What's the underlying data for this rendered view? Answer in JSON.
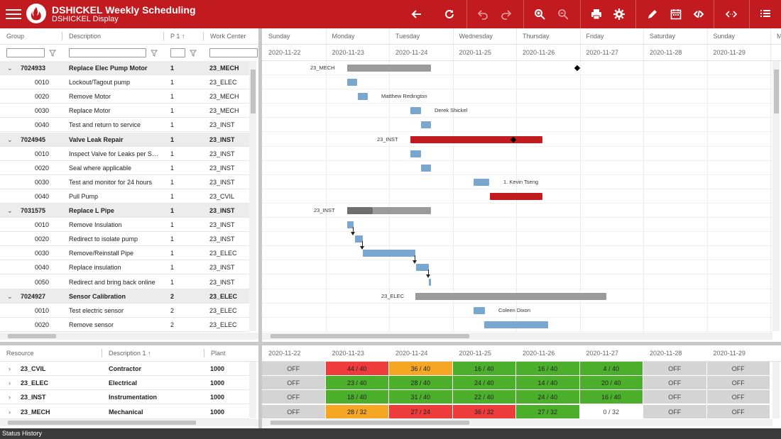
{
  "header": {
    "title": "DSHICKEL Weekly Scheduling",
    "subtitle": "DSHICKEL Display",
    "icons": [
      "menu-icon",
      "logo-icon",
      "back-icon",
      "refresh-icon",
      "undo-icon",
      "redo-icon",
      "zoom-in-icon",
      "zoom-out-icon",
      "print-icon",
      "settings-icon",
      "edit-icon",
      "calendar-icon",
      "link-icon",
      "expand-icon",
      "list-icon"
    ],
    "color": "#c11b20"
  },
  "orders_grid": {
    "columns": [
      "Group",
      "Description",
      "P 1",
      "Work Center"
    ],
    "rows": [
      {
        "group": "7024933",
        "description": "Replace Elec Pump Motor",
        "p": "1",
        "wc": "23_MECH",
        "type": "group"
      },
      {
        "group": "0010",
        "description": "Lockout/Tagout pump",
        "p": "1",
        "wc": "23_ELEC",
        "type": "op"
      },
      {
        "group": "0020",
        "description": "Remove Motor",
        "p": "1",
        "wc": "23_MECH",
        "type": "op"
      },
      {
        "group": "0030",
        "description": "Replace Motor",
        "p": "1",
        "wc": "23_MECH",
        "type": "op"
      },
      {
        "group": "0040",
        "description": "Test and return to service",
        "p": "1",
        "wc": "23_INST",
        "type": "op"
      },
      {
        "group": "7024945",
        "description": "Valve Leak Repair",
        "p": "1",
        "wc": "23_INST",
        "type": "group"
      },
      {
        "group": "0010",
        "description": "Inspect Valve for Leaks per SO...",
        "p": "1",
        "wc": "23_INST",
        "type": "op"
      },
      {
        "group": "0020",
        "description": "Seal where applicable",
        "p": "1",
        "wc": "23_INST",
        "type": "op"
      },
      {
        "group": "0030",
        "description": "Test and monitor for 24 hours",
        "p": "1",
        "wc": "23_INST",
        "type": "op"
      },
      {
        "group": "0040",
        "description": "Pull Pump",
        "p": "1",
        "wc": "23_CVIL",
        "type": "op"
      },
      {
        "group": "7031575",
        "description": "Replace L Pipe",
        "p": "1",
        "wc": "23_INST",
        "type": "group"
      },
      {
        "group": "0010",
        "description": "Remove Insulation",
        "p": "1",
        "wc": "23_INST",
        "type": "op"
      },
      {
        "group": "0020",
        "description": "Redirect to isolate pump",
        "p": "1",
        "wc": "23_INST",
        "type": "op"
      },
      {
        "group": "0030",
        "description": "Remove/Reinstall Pipe",
        "p": "1",
        "wc": "23_ELEC",
        "type": "op"
      },
      {
        "group": "0040",
        "description": "Replace insulation",
        "p": "1",
        "wc": "23_INST",
        "type": "op"
      },
      {
        "group": "0050",
        "description": "Redirect and bring back online",
        "p": "1",
        "wc": "23_INST",
        "type": "op"
      },
      {
        "group": "7024927",
        "description": "Sensor Calibration",
        "p": "2",
        "wc": "23_ELEC",
        "type": "group"
      },
      {
        "group": "0010",
        "description": "Test electric sensor",
        "p": "2",
        "wc": "23_ELEC",
        "type": "op"
      },
      {
        "group": "0020",
        "description": "Remove sensor",
        "p": "2",
        "wc": "23_ELEC",
        "type": "op"
      }
    ]
  },
  "gantt": {
    "days": [
      "Sunday",
      "Monday",
      "Tuesday",
      "Wednesday",
      "Thursday",
      "Friday",
      "Saturday",
      "Sunday",
      "M"
    ],
    "dates": [
      "2020-11-22",
      "2020-11-23",
      "2020-11-24",
      "2020-11-25",
      "2020-11-26",
      "2020-11-27",
      "2020-11-28",
      "2020-11-29"
    ],
    "labels": [
      "23_MECH",
      "Matthew Redington",
      "Derek Shickel",
      "23_INST",
      "1. Kevin Tseng",
      "23_INST",
      "23_ELEC",
      "Coleen Dixon"
    ]
  },
  "resources_grid": {
    "columns": [
      "Resource",
      "Description 1",
      "Plant"
    ],
    "rows": [
      {
        "resource": "23_CVIL",
        "description": "Contractor",
        "plant": "1000"
      },
      {
        "resource": "23_ELEC",
        "description": "Electrical",
        "plant": "1000"
      },
      {
        "resource": "23_INST",
        "description": "Instrumentation",
        "plant": "1000"
      },
      {
        "resource": "23_MECH",
        "description": "Mechanical",
        "plant": "1000"
      }
    ]
  },
  "capacity": {
    "dates": [
      "2020-11-22",
      "2020-11-23",
      "2020-11-24",
      "2020-11-25",
      "2020-11-26",
      "2020-11-27",
      "2020-11-28",
      "2020-11-29"
    ],
    "rows": [
      [
        {
          "v": "OFF",
          "s": "off"
        },
        {
          "v": "44 / 40",
          "s": "red"
        },
        {
          "v": "36 / 40",
          "s": "orange"
        },
        {
          "v": "16 / 40",
          "s": "green"
        },
        {
          "v": "16 / 40",
          "s": "green"
        },
        {
          "v": "4 / 40",
          "s": "green"
        },
        {
          "v": "OFF",
          "s": "off"
        },
        {
          "v": "OFF",
          "s": "off"
        }
      ],
      [
        {
          "v": "OFF",
          "s": "off"
        },
        {
          "v": "23 / 40",
          "s": "green"
        },
        {
          "v": "28 / 40",
          "s": "green"
        },
        {
          "v": "24 / 40",
          "s": "green"
        },
        {
          "v": "14 / 40",
          "s": "green"
        },
        {
          "v": "20 / 40",
          "s": "green"
        },
        {
          "v": "OFF",
          "s": "off"
        },
        {
          "v": "OFF",
          "s": "off"
        }
      ],
      [
        {
          "v": "OFF",
          "s": "off"
        },
        {
          "v": "18 / 40",
          "s": "green"
        },
        {
          "v": "31 / 40",
          "s": "green"
        },
        {
          "v": "22 / 40",
          "s": "green"
        },
        {
          "v": "24 / 40",
          "s": "green"
        },
        {
          "v": "16 / 40",
          "s": "green"
        },
        {
          "v": "OFF",
          "s": "off"
        },
        {
          "v": "OFF",
          "s": "off"
        }
      ],
      [
        {
          "v": "OFF",
          "s": "off"
        },
        {
          "v": "28 / 32",
          "s": "orange"
        },
        {
          "v": "27 / 24",
          "s": "red"
        },
        {
          "v": "36 / 32",
          "s": "red"
        },
        {
          "v": "27 / 32",
          "s": "green"
        },
        {
          "v": "0 / 32",
          "s": "white"
        },
        {
          "v": "OFF",
          "s": "off"
        },
        {
          "v": "OFF",
          "s": "off"
        }
      ]
    ]
  },
  "status_bar": {
    "label": "Status History"
  }
}
